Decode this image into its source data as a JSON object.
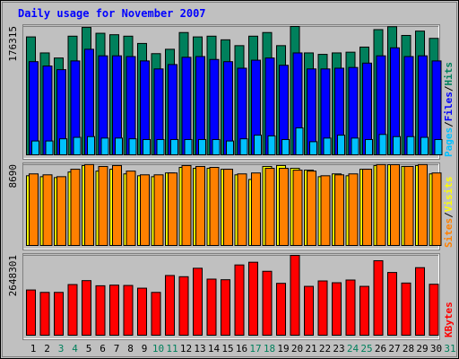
{
  "colors": {
    "background": "#c0c0c0",
    "title": "#0000ff",
    "hits": "#00805c",
    "files": "#0000ff",
    "pages": "#00c0ff",
    "visits": "#ffff00",
    "sites": "#ff8000",
    "kbytes": "#ff0000",
    "weekend": "#00805c",
    "weekday": "#000000"
  },
  "chart_data": {
    "type": "bar",
    "title": "Daily usage for November 2007",
    "categories": [
      "1",
      "2",
      "3",
      "4",
      "5",
      "6",
      "7",
      "8",
      "9",
      "10",
      "11",
      "12",
      "13",
      "14",
      "15",
      "16",
      "17",
      "18",
      "19",
      "20",
      "21",
      "22",
      "23",
      "24",
      "25",
      "26",
      "27",
      "28",
      "29",
      "30",
      "31"
    ],
    "weekend_days": [
      "3",
      "4",
      "10",
      "11",
      "17",
      "18",
      "24",
      "25",
      "31"
    ],
    "panels": [
      {
        "name": "hits-files-pages",
        "ymax_label": "176315",
        "ylim": [
          0,
          176315
        ],
        "legend": [
          {
            "text": "Pages",
            "color": "#00c0ff"
          },
          {
            "sep": "/"
          },
          {
            "text": "Files",
            "color": "#0000ff"
          },
          {
            "sep": "/"
          },
          {
            "text": "Hits",
            "color": "#00805c"
          }
        ],
        "series": [
          {
            "name": "Hits",
            "color": "#00805c",
            "values": [
              162000,
              140000,
              133000,
              163000,
              175000,
              167000,
              165000,
              163000,
              153000,
              139000,
              145000,
              168000,
              162000,
              163000,
              158000,
              150000,
              163000,
              168000,
              150000,
              176315,
              140000,
              138000,
              140000,
              141000,
              148000,
              172000,
              176000,
              164000,
              170000,
              160000,
              0
            ]
          },
          {
            "name": "Files",
            "color": "#0000ff",
            "values": [
              128000,
              122000,
              117000,
              129000,
              145000,
              136000,
              136000,
              135000,
              129000,
              118000,
              124000,
              134000,
              135000,
              131000,
              128000,
              119000,
              130000,
              133000,
              123000,
              140000,
              118000,
              118000,
              119000,
              120000,
              126000,
              136000,
              147000,
              135000,
              136000,
              129000,
              0
            ]
          },
          {
            "name": "Pages",
            "color": "#00c0ff",
            "values": [
              19000,
              19000,
              22000,
              24000,
              25000,
              23000,
              23000,
              22000,
              21000,
              21000,
              21000,
              21000,
              21000,
              21000,
              19000,
              22000,
              27000,
              26000,
              21000,
              37000,
              18000,
              23000,
              27000,
              23000,
              21000,
              28000,
              25000,
              25000,
              24000,
              21000,
              0
            ]
          }
        ]
      },
      {
        "name": "visits-sites",
        "ymax_label": "8690",
        "ylim": [
          0,
          8690
        ],
        "legend": [
          {
            "text": "Sites",
            "color": "#ff8000"
          },
          {
            "sep": "/"
          },
          {
            "text": "Visits",
            "color": "#ffff00"
          }
        ],
        "series": [
          {
            "name": "Visits",
            "color": "#ffff00",
            "values": [
              7500,
              7400,
              7300,
              7900,
              8600,
              8000,
              8200,
              7700,
              7500,
              7400,
              7800,
              8400,
              8300,
              8300,
              8200,
              7600,
              7100,
              8500,
              8600,
              8300,
              8100,
              7400,
              7700,
              7500,
              8200,
              8600,
              8690,
              8500,
              8600,
              7700,
              0
            ]
          },
          {
            "name": "Sites",
            "color": "#ff8000",
            "values": [
              7700,
              7600,
              7400,
              8200,
              8700,
              8500,
              8600,
              8000,
              7600,
              7600,
              7800,
              8600,
              8500,
              8400,
              8200,
              7700,
              7800,
              8300,
              8300,
              8100,
              8000,
              7500,
              7600,
              7700,
              8200,
              8700,
              8690,
              8500,
              8700,
              7800,
              0
            ]
          }
        ]
      },
      {
        "name": "kbytes",
        "ymax_label": "2648301",
        "ylim": [
          0,
          2648301
        ],
        "legend": [
          {
            "text": "KBytes",
            "color": "#ff0000"
          }
        ],
        "series": [
          {
            "name": "KBytes",
            "color": "#ff0000",
            "values": [
              1500000,
              1420000,
              1420000,
              1680000,
              1810000,
              1640000,
              1660000,
              1650000,
              1560000,
              1420000,
              1980000,
              1940000,
              2220000,
              1860000,
              1840000,
              2330000,
              2420000,
              2120000,
              1720000,
              2648301,
              1620000,
              1800000,
              1740000,
              1830000,
              1620000,
              2470000,
              2080000,
              1730000,
              2240000,
              1690000,
              0
            ]
          }
        ]
      }
    ]
  }
}
